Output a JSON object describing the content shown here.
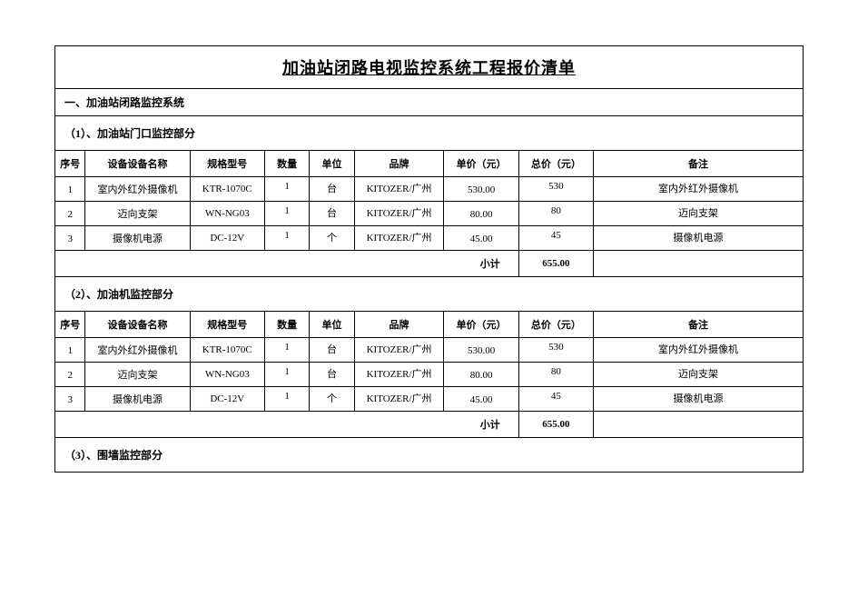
{
  "title": "加油站闭路电视监控系统工程报价清单",
  "section_main": "一、加油站闭路监控系统",
  "headers": {
    "idx": "序号",
    "name": "设备设备名称",
    "spec": "规格型号",
    "qty": "数量",
    "unit": "单位",
    "brand": "品牌",
    "unit_price": "单价（元）",
    "total_price": "总价（元）",
    "remark": "备注"
  },
  "subtotal_label": "小计",
  "sections": [
    {
      "title": "（1）、加油站门口监控部分",
      "rows": [
        {
          "idx": "1",
          "name": "室内外红外摄像机",
          "spec": "KTR-1070C",
          "qty": "1",
          "unit": "台",
          "brand": "KITOZER/广州",
          "unit_price": "530.00",
          "total_price": "530",
          "remark": "室内外红外摄像机"
        },
        {
          "idx": "2",
          "name": "迈向支架",
          "spec": "WN-NG03",
          "qty": "1",
          "unit": "台",
          "brand": "KITOZER/广州",
          "unit_price": "80.00",
          "total_price": "80",
          "remark": "迈向支架"
        },
        {
          "idx": "3",
          "name": "摄像机电源",
          "spec": "DC-12V",
          "qty": "1",
          "unit": "个",
          "brand": "KITOZER/广州",
          "unit_price": "45.00",
          "total_price": "45",
          "remark": "摄像机电源"
        }
      ],
      "subtotal": "655.00"
    },
    {
      "title": "（2）、加油机监控部分",
      "rows": [
        {
          "idx": "1",
          "name": "室内外红外摄像机",
          "spec": "KTR-1070C",
          "qty": "1",
          "unit": "台",
          "brand": "KITOZER/广州",
          "unit_price": "530.00",
          "total_price": "530",
          "remark": "室内外红外摄像机"
        },
        {
          "idx": "2",
          "name": "迈向支架",
          "spec": "WN-NG03",
          "qty": "1",
          "unit": "台",
          "brand": "KITOZER/广州",
          "unit_price": "80.00",
          "total_price": "80",
          "remark": "迈向支架"
        },
        {
          "idx": "3",
          "name": "摄像机电源",
          "spec": "DC-12V",
          "qty": "1",
          "unit": "个",
          "brand": "KITOZER/广州",
          "unit_price": "45.00",
          "total_price": "45",
          "remark": "摄像机电源"
        }
      ],
      "subtotal": "655.00"
    },
    {
      "title": "（3）、围墙监控部分",
      "rows": [],
      "subtotal": ""
    }
  ],
  "style": {
    "bg": "#ffffff",
    "border": "#000000",
    "title_fontsize": 18,
    "cell_fontsize": 11,
    "section_fontsize": 12
  },
  "table": {
    "columns": [
      "序号",
      "设备设备名称",
      "规格型号",
      "数量",
      "单位",
      "品牌",
      "单价（元）",
      "总价（元）",
      "备注"
    ],
    "col_widths_pct": [
      4,
      14,
      10,
      6,
      6,
      12,
      10,
      10,
      28
    ]
  }
}
